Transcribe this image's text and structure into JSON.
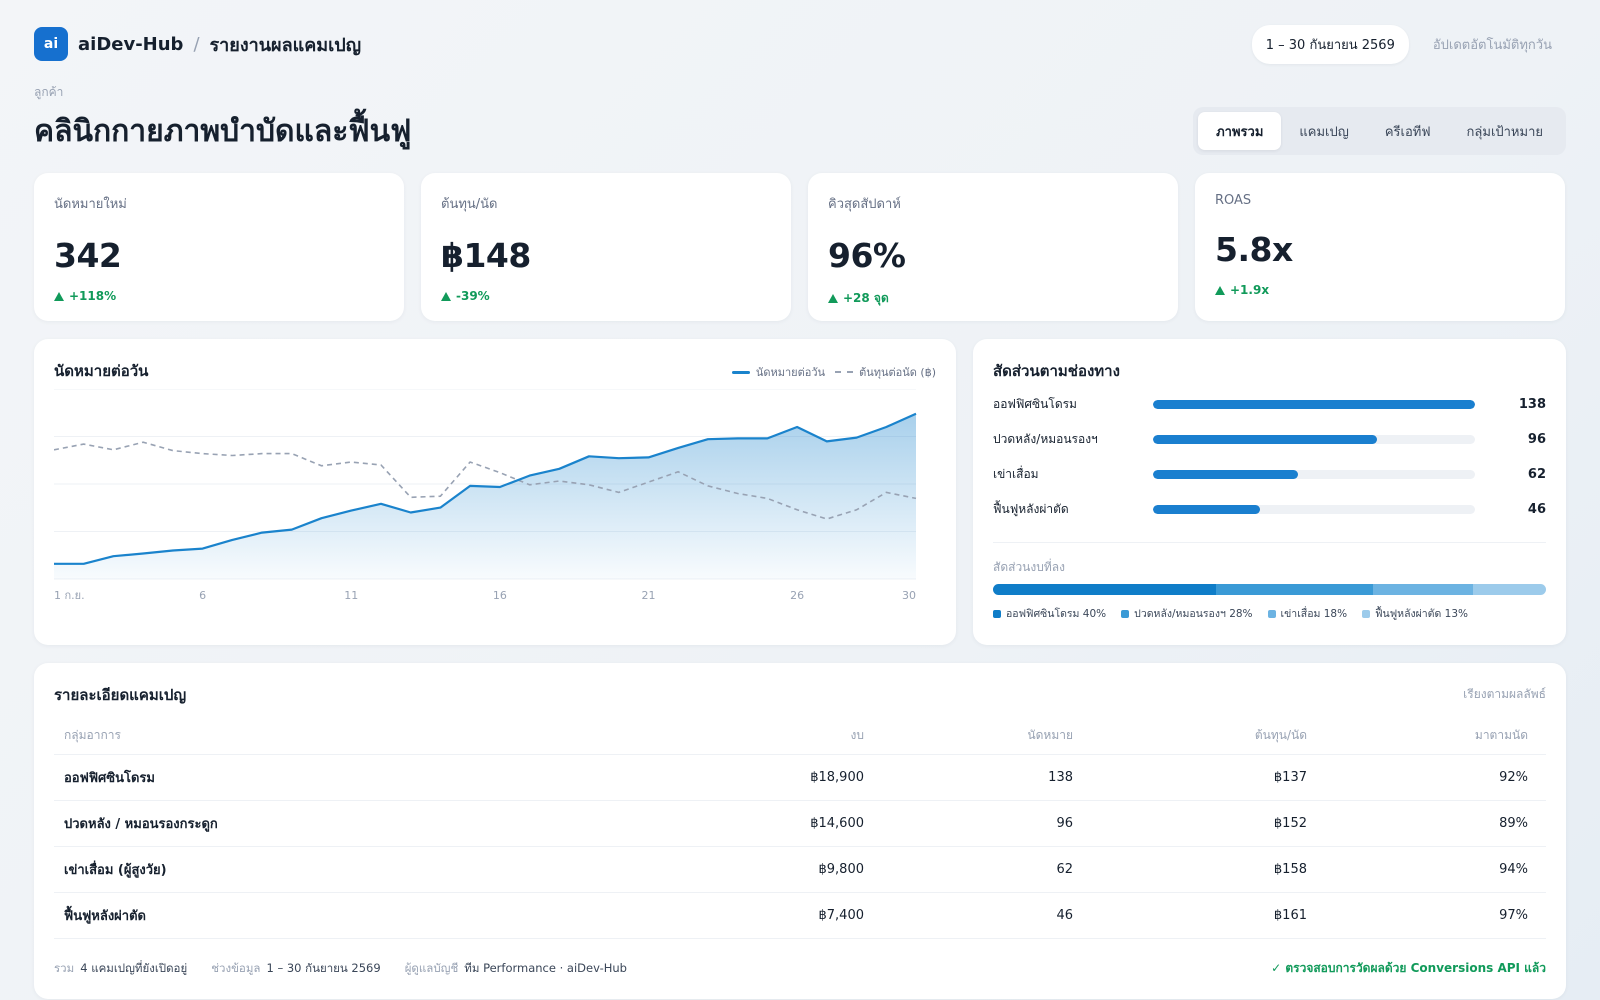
{
  "header": {
    "logo_text": "ai",
    "brand": "aiDev-Hub",
    "separator": "/",
    "page": "รายงานผลแคมเปญ",
    "date_range": "1 – 30 กันยายน 2569",
    "auto_update": "อัปเดตอัตโนมัติทุกวัน"
  },
  "client": {
    "label": "ลูกค้า",
    "name": "คลินิกกายภาพบำบัดและฟื้นฟู"
  },
  "tabs": [
    {
      "label": "ภาพรวม",
      "active": true
    },
    {
      "label": "แคมเปญ",
      "active": false
    },
    {
      "label": "ครีเอทีฟ",
      "active": false
    },
    {
      "label": "กลุ่มเป้าหมาย",
      "active": false
    }
  ],
  "kpis": [
    {
      "label": "นัดหมายใหม่",
      "value": "342",
      "delta": "+118%"
    },
    {
      "label": "ต้นทุน/นัด",
      "value": "฿148",
      "delta": "-39%"
    },
    {
      "label": "คิวสุดสัปดาห์",
      "value": "96%",
      "delta": "+28 จุด"
    },
    {
      "label": "ROAS",
      "value": "5.8x",
      "delta": "+1.9x"
    }
  ],
  "daily_chart": {
    "title": "นัดหมายต่อวัน",
    "legend": [
      "นัดหมายต่อวัน",
      "ต้นทุนต่อนัด (฿)"
    ],
    "colors": {
      "appointments": "#1a83cc",
      "cost": "#98a2b3"
    }
  },
  "chart_data": {
    "type": "line",
    "x": [
      1,
      2,
      3,
      4,
      5,
      6,
      7,
      8,
      9,
      10,
      11,
      12,
      13,
      14,
      15,
      16,
      17,
      18,
      19,
      20,
      21,
      22,
      23,
      24,
      25,
      26,
      27,
      28,
      29,
      30
    ],
    "x_tick_labels": [
      "1 ก.ย.",
      "6",
      "11",
      "16",
      "21",
      "26",
      "30"
    ],
    "x_tick_positions": [
      1,
      6,
      11,
      16,
      21,
      26,
      30
    ],
    "series": [
      {
        "name": "นัดหมายต่อวัน",
        "style": "solid-area",
        "values": [
          4,
          4,
          6,
          6.7,
          7.5,
          8,
          10.3,
          12.2,
          13,
          16,
          18,
          19.8,
          17.5,
          18.8,
          24.5,
          24.2,
          27.2,
          29,
          32.3,
          31.8,
          32,
          34.5,
          36.8,
          37,
          37,
          40,
          36.2,
          37.2,
          40,
          43.5
        ]
      },
      {
        "name": "ต้นทุนต่อนัด (฿)",
        "style": "dashed",
        "values": [
          34,
          35.5,
          34,
          36,
          33.8,
          33,
          32.5,
          33,
          33,
          29.8,
          30.8,
          30,
          21.5,
          21.8,
          30.8,
          28,
          24.8,
          25.8,
          24.8,
          22.8,
          25.5,
          28.2,
          24.5,
          22.5,
          21.2,
          18.2,
          15.8,
          18.2,
          22.8,
          21.2
        ]
      }
    ],
    "ylim": [
      0,
      50
    ],
    "grid": true
  },
  "channels": {
    "title": "สัดส่วนตามช่องทาง",
    "items": [
      {
        "name": "ออฟฟิศซินโดรม",
        "value": 138
      },
      {
        "name": "ปวดหลัง/หมอนรองฯ",
        "value": 96
      },
      {
        "name": "เข่าเสื่อม",
        "value": 62
      },
      {
        "name": "ฟื้นฟูหลังผ่าตัด",
        "value": 46
      }
    ],
    "max": 138,
    "share_title": "สัดส่วนงบที่ลง",
    "share": [
      {
        "label": "ออฟฟิศซินโดรม 40%",
        "pct": 40,
        "color": "#0f7dc8"
      },
      {
        "label": "ปวดหลัง/หมอนรองฯ 28%",
        "pct": 28,
        "color": "#3a9ad6"
      },
      {
        "label": "เข่าเสื่อม 18%",
        "pct": 18,
        "color": "#6cb3e2"
      },
      {
        "label": "ฟื้นฟูหลังผ่าตัด 13%",
        "pct": 13,
        "color": "#9ccbeb"
      }
    ]
  },
  "campaigns": {
    "title": "รายละเอียดแคมเปญ",
    "sort_label": "เรียงตามผลลัพธ์",
    "columns": [
      "กลุ่มอาการ",
      "งบ",
      "นัดหมาย",
      "ต้นทุน/นัด",
      "มาตามนัด"
    ],
    "rows": [
      [
        "ออฟฟิศซินโดรม",
        "฿18,900",
        "138",
        "฿137",
        "92%"
      ],
      [
        "ปวดหลัง / หมอนรองกระดูก",
        "฿14,600",
        "96",
        "฿152",
        "89%"
      ],
      [
        "เข่าเสื่อม (ผู้สูงวัย)",
        "฿9,800",
        "62",
        "฿158",
        "94%"
      ],
      [
        "ฟื้นฟูหลังผ่าตัด",
        "฿7,400",
        "46",
        "฿161",
        "97%"
      ]
    ],
    "footer": {
      "total_label": "รวม",
      "total_value": "4 แคมเปญที่ยังเปิดอยู่",
      "period_label": "ช่วงข้อมูล",
      "period_value": "1 – 30 กันยายน 2569",
      "owner_label": "ผู้ดูแลบัญชี",
      "owner_value": "ทีม Performance · aiDev-Hub",
      "verified": "✓ ตรวจสอบการวัดผลด้วย Conversions API แล้ว"
    }
  }
}
